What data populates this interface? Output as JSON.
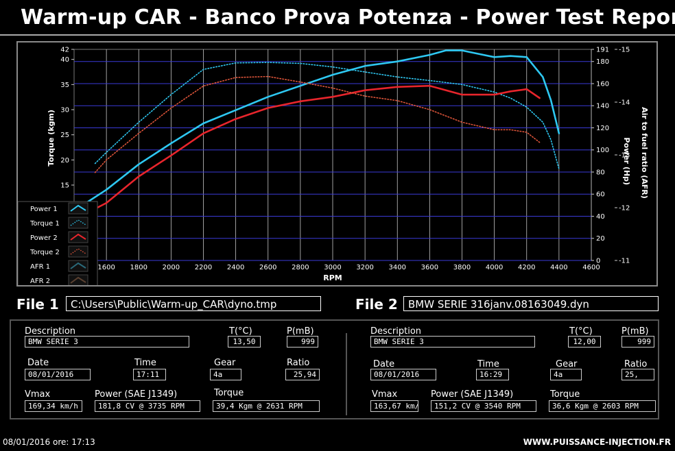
{
  "title": "Warm-up CAR  - Banco Prova Potenza -  Power Test Report",
  "chart_data": {
    "type": "line",
    "xlabel": "RPM",
    "ylabel_left": "Torque (kgm)",
    "ylabel_right1": "Power (Hp)",
    "ylabel_right2": "Air to fuel ratio (AFR)",
    "xlim": [
      1400,
      4600
    ],
    "xticks": [
      1600,
      1800,
      2000,
      2200,
      2400,
      2600,
      2800,
      3000,
      3200,
      3400,
      3600,
      3800,
      4000,
      4200,
      4400,
      4600
    ],
    "torque_axis": {
      "lim": [
        0,
        42
      ],
      "ticks": [
        15,
        20,
        25,
        30,
        35,
        40,
        42
      ]
    },
    "power_axis": {
      "lim": [
        0,
        191
      ],
      "ticks": [
        0,
        20,
        40,
        60,
        80,
        100,
        120,
        140,
        160,
        180,
        191
      ]
    },
    "afr_axis": {
      "lim": [
        -11,
        -15
      ],
      "ticks": [
        -11,
        -12,
        -13,
        -14,
        -15
      ]
    },
    "grid": true,
    "legend_position": "bottom-left",
    "series": [
      {
        "name": "Power 1",
        "axis": "power",
        "color": "#2ec8f2",
        "style": "solid",
        "x": [
          1400,
          1600,
          1800,
          2000,
          2200,
          2400,
          2600,
          2800,
          3000,
          3200,
          3400,
          3600,
          3700,
          3800,
          3900,
          4000,
          4100,
          4200,
          4300,
          4350,
          4400
        ],
        "y": [
          45,
          64,
          87,
          106,
          124,
          136,
          148,
          158,
          168,
          176,
          180,
          186,
          190,
          190,
          187,
          184,
          185,
          184,
          166,
          145,
          115
        ]
      },
      {
        "name": "Torque 1",
        "axis": "torque",
        "color": "#2ec8f2",
        "style": "dotted",
        "x": [
          1530,
          1600,
          1800,
          2000,
          2200,
          2400,
          2600,
          2800,
          3000,
          3200,
          3400,
          3600,
          3800,
          4000,
          4100,
          4200,
          4300,
          4350,
          4400
        ],
        "y": [
          19.3,
          21.5,
          27.5,
          33,
          38,
          39.3,
          39.4,
          39.2,
          38.5,
          37.5,
          36.5,
          35.8,
          35,
          33.5,
          32.3,
          30.5,
          27.5,
          24,
          18.2
        ]
      },
      {
        "name": "Power 2",
        "axis": "power",
        "color": "#e8252c",
        "style": "solid",
        "x": [
          1400,
          1600,
          1800,
          2000,
          2200,
          2400,
          2600,
          2800,
          3000,
          3200,
          3400,
          3600,
          3800,
          4000,
          4100,
          4200,
          4280
        ],
        "y": [
          37,
          52,
          76,
          95,
          115,
          128,
          138,
          144,
          148,
          154,
          157,
          158,
          150,
          150,
          153,
          155,
          147
        ]
      },
      {
        "name": "Torque 2",
        "axis": "torque",
        "color": "#e0553a",
        "style": "dotted",
        "x": [
          1530,
          1600,
          1800,
          2000,
          2200,
          2400,
          2600,
          2800,
          3000,
          3200,
          3400,
          3600,
          3800,
          4000,
          4100,
          4200,
          4280
        ],
        "y": [
          17.5,
          20,
          25.3,
          30.3,
          34.7,
          36.4,
          36.6,
          35.5,
          34.3,
          32.7,
          31.8,
          30,
          27.5,
          26,
          26,
          25.5,
          23.5
        ]
      }
    ],
    "legend": [
      {
        "label": "Power 1",
        "color": "#2ec8f2",
        "style": "solid"
      },
      {
        "label": "Torque 1",
        "color": "#2ec8f2",
        "style": "dotted"
      },
      {
        "label": "Power 2",
        "color": "#e8252c",
        "style": "solid"
      },
      {
        "label": "Torque 2",
        "color": "#e0553a",
        "style": "dotted"
      },
      {
        "label": "AFR 1",
        "color": "#2a6a7a",
        "style": "solid"
      },
      {
        "label": "AFR 2",
        "color": "#5a4030",
        "style": "solid"
      }
    ]
  },
  "file1": {
    "label": "File 1",
    "path": "C:\\Users\\Public\\Warm-up_CAR\\dyno.tmp"
  },
  "file2": {
    "label": "File 2",
    "path": "BMW SERIE 316janv.08163049.dyn"
  },
  "labels": {
    "description": "Description",
    "temp": "T(°C)",
    "pressure": "P(mB)",
    "date": "Date",
    "time": "Time",
    "gear": "Gear",
    "ratio": "Ratio",
    "vmax": "Vmax",
    "power": "Power (SAE J1349)",
    "torque": "Torque"
  },
  "test1": {
    "description": "BMW SERIE 3",
    "temp": "13,50",
    "pressure": "999",
    "date": "08/01/2016",
    "time": "17:11",
    "gear": "4a",
    "ratio": "25,94",
    "vmax": "169,34 km/h",
    "power": "181,8 CV  @ 3735  RPM",
    "torque": "39,4 Kgm  @ 2631  RPM"
  },
  "test2": {
    "description": "BMW SERIE 3",
    "temp": "12,00",
    "pressure": "999",
    "date": "08/01/2016",
    "time": "16:29",
    "gear": "4a",
    "ratio": "25,",
    "vmax": "163,67 km/",
    "power": "151,2 CV  @ 3540  RPM",
    "torque": "36,6 Kgm  @ 2603  RPM"
  },
  "footer": {
    "datetime": "08/01/2016  ore: 17:13",
    "website": "WWW.PUISSANCE-INJECTION.FR"
  }
}
